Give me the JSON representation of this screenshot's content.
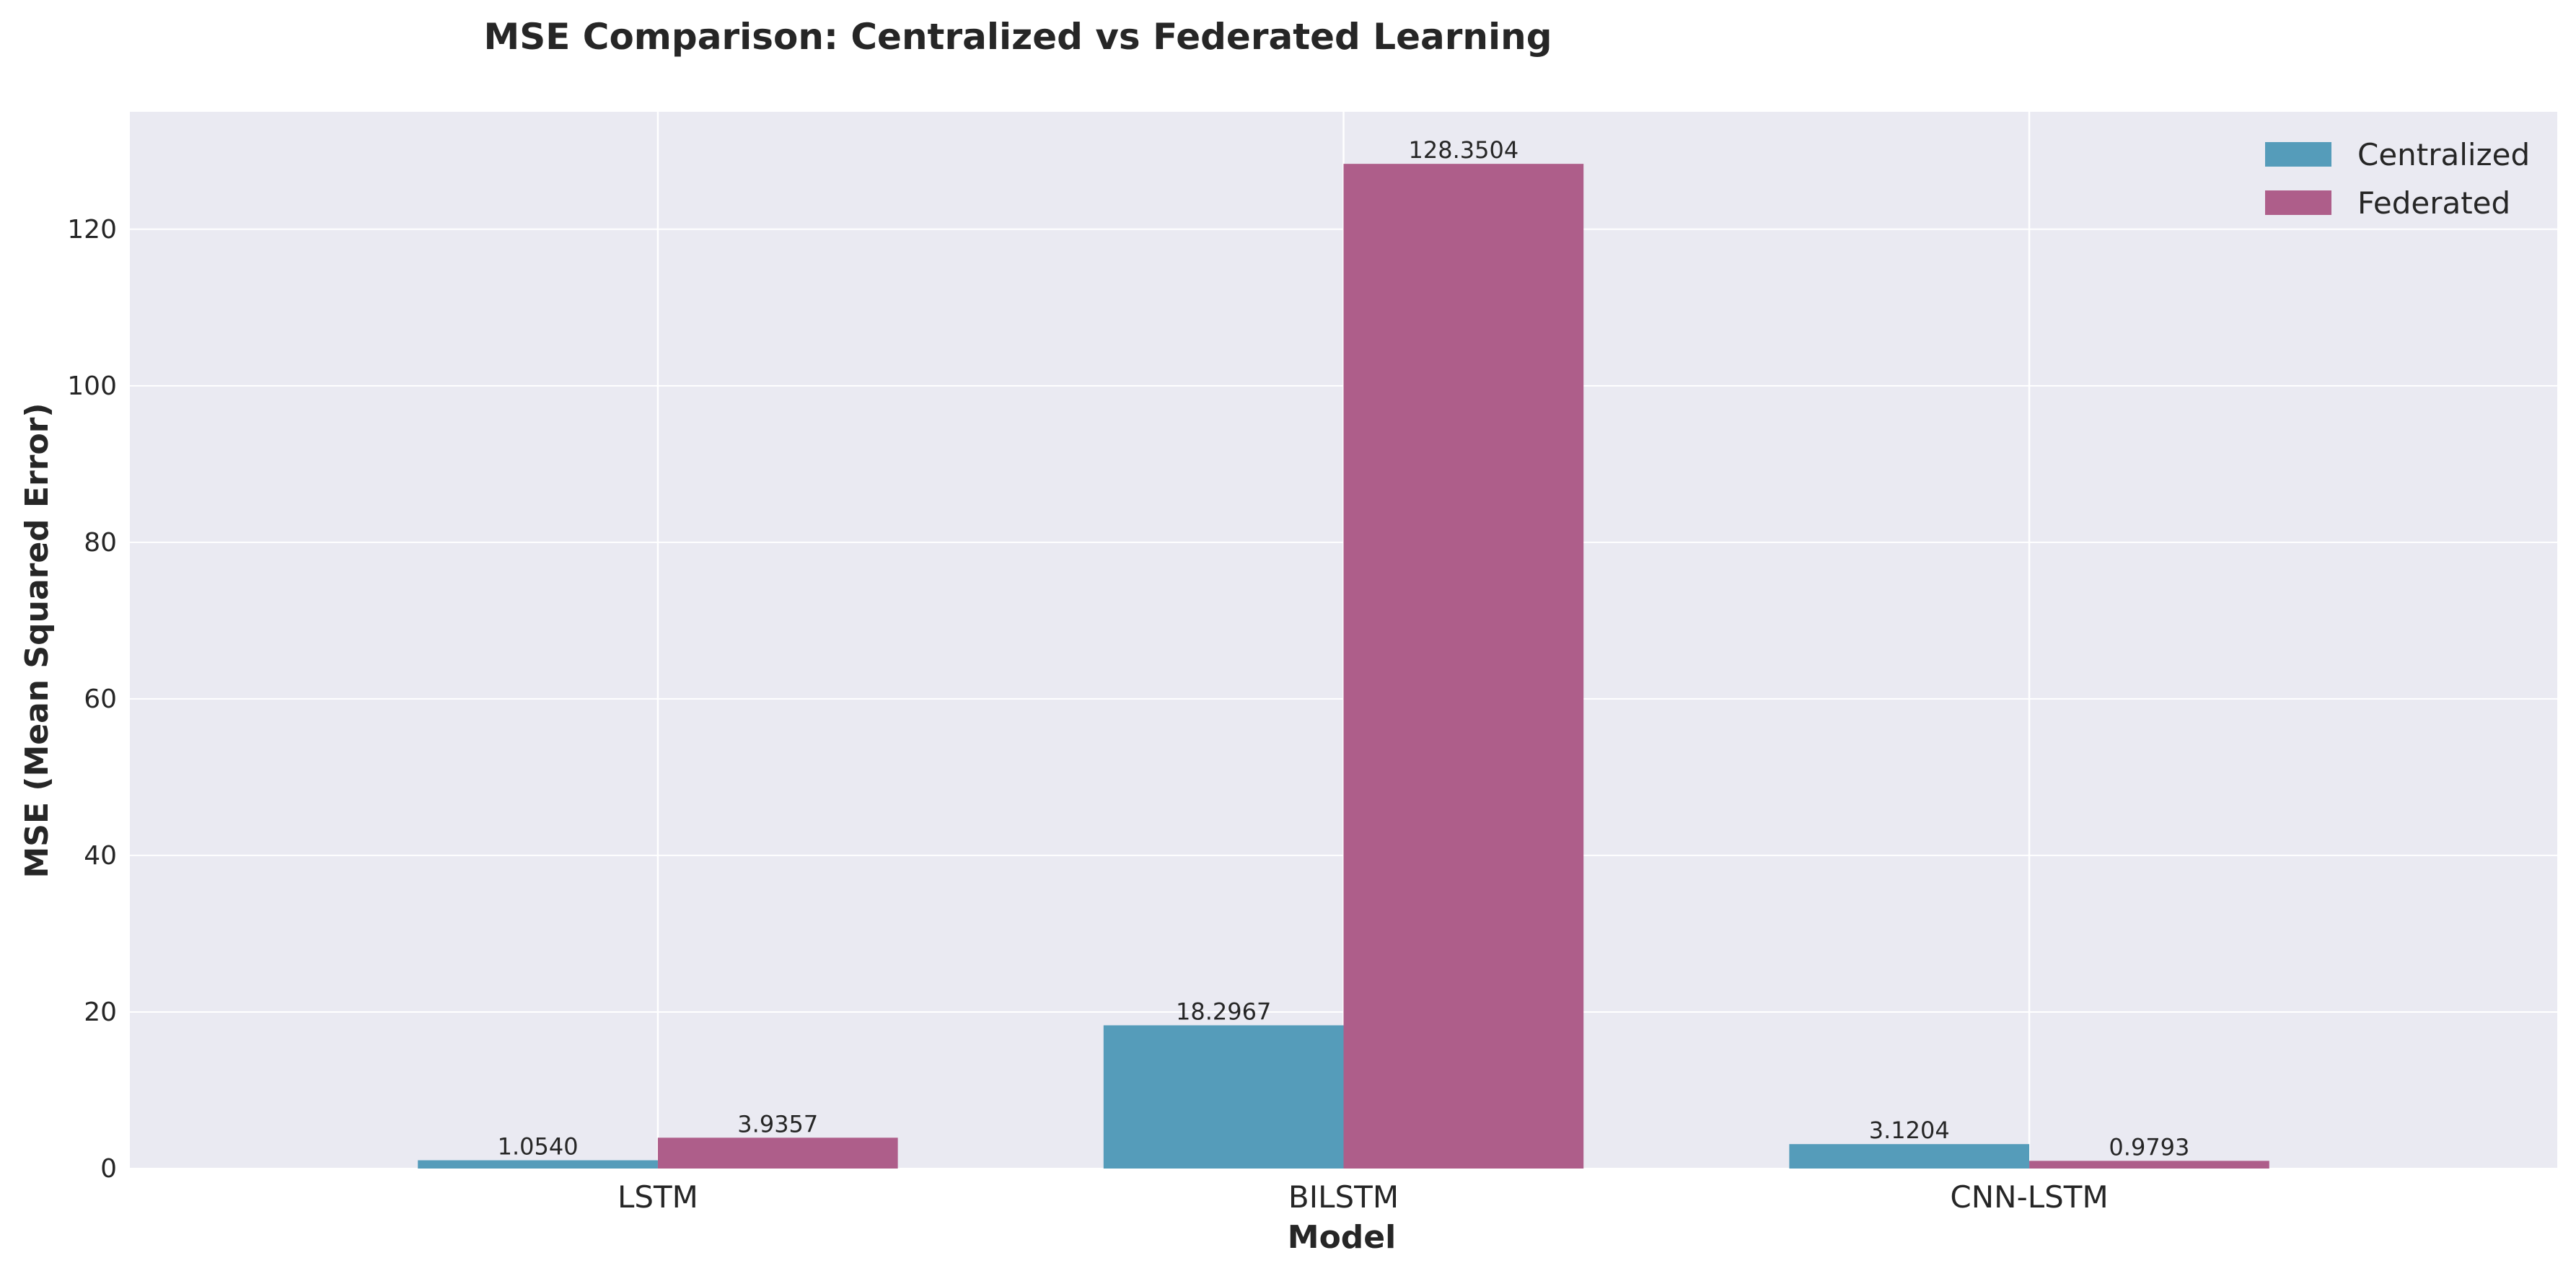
{
  "chart_data": {
    "type": "bar",
    "title": "MSE Comparison: Centralized vs Federated Learning",
    "xlabel": "Model",
    "ylabel": "MSE (Mean Squared Error)",
    "categories": [
      "LSTM",
      "BILSTM",
      "CNN-LSTM"
    ],
    "series": [
      {
        "name": "Centralized",
        "values": [
          1.054,
          18.2967,
          3.1204
        ],
        "labels": [
          "1.0540",
          "18.2967",
          "3.1204"
        ],
        "color": "#559cba"
      },
      {
        "name": "Federated",
        "values": [
          3.9357,
          128.3504,
          0.9793
        ],
        "labels": [
          "3.9357",
          "128.3504",
          "0.9793"
        ],
        "color": "#ae5e8a"
      }
    ],
    "ylim": [
      0,
      135
    ],
    "yticks": [
      0,
      20,
      40,
      60,
      80,
      100,
      120
    ],
    "grid": true,
    "legend": "top-right",
    "colors": {
      "plot_background": "#eaeaf2",
      "grid": "#ffffff",
      "text": "#262626"
    }
  }
}
